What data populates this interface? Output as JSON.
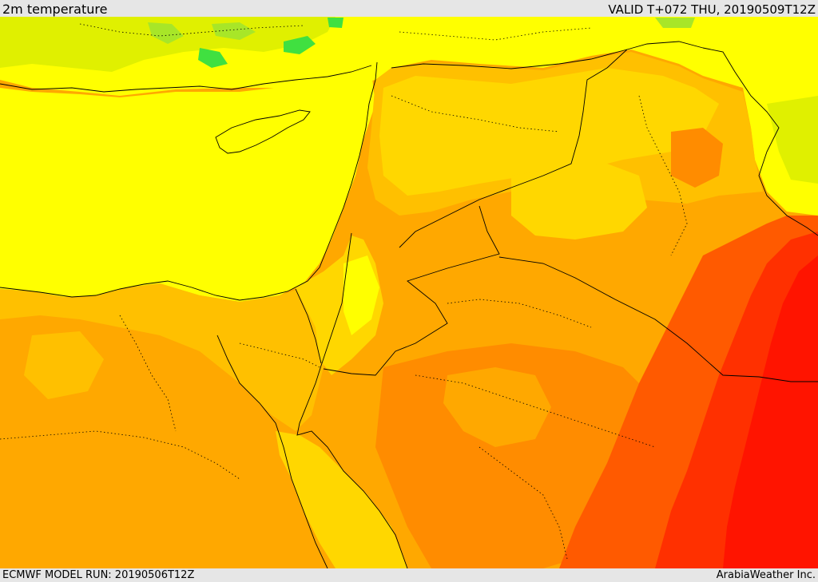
{
  "header": {
    "title": "2m temperature",
    "valid": "VALID T+072 THU, 20190509T12Z"
  },
  "footer": {
    "model_run": "ECMWF MODEL RUN: 20190506T12Z",
    "credit": "ArabiaWeather Inc."
  },
  "map": {
    "field": "2m temperature",
    "colors": {
      "green": "#40e040",
      "light_green": "#a8e628",
      "yellow_green": "#e0f000",
      "yellow": "#ffff00",
      "gold": "#ffd700",
      "amber": "#ffc000",
      "orange": "#ffa800",
      "dark_orange": "#ff8c00",
      "orange_red": "#ff5a00",
      "red_orange": "#ff3000",
      "red": "#ff1400",
      "border": "#000000"
    }
  }
}
